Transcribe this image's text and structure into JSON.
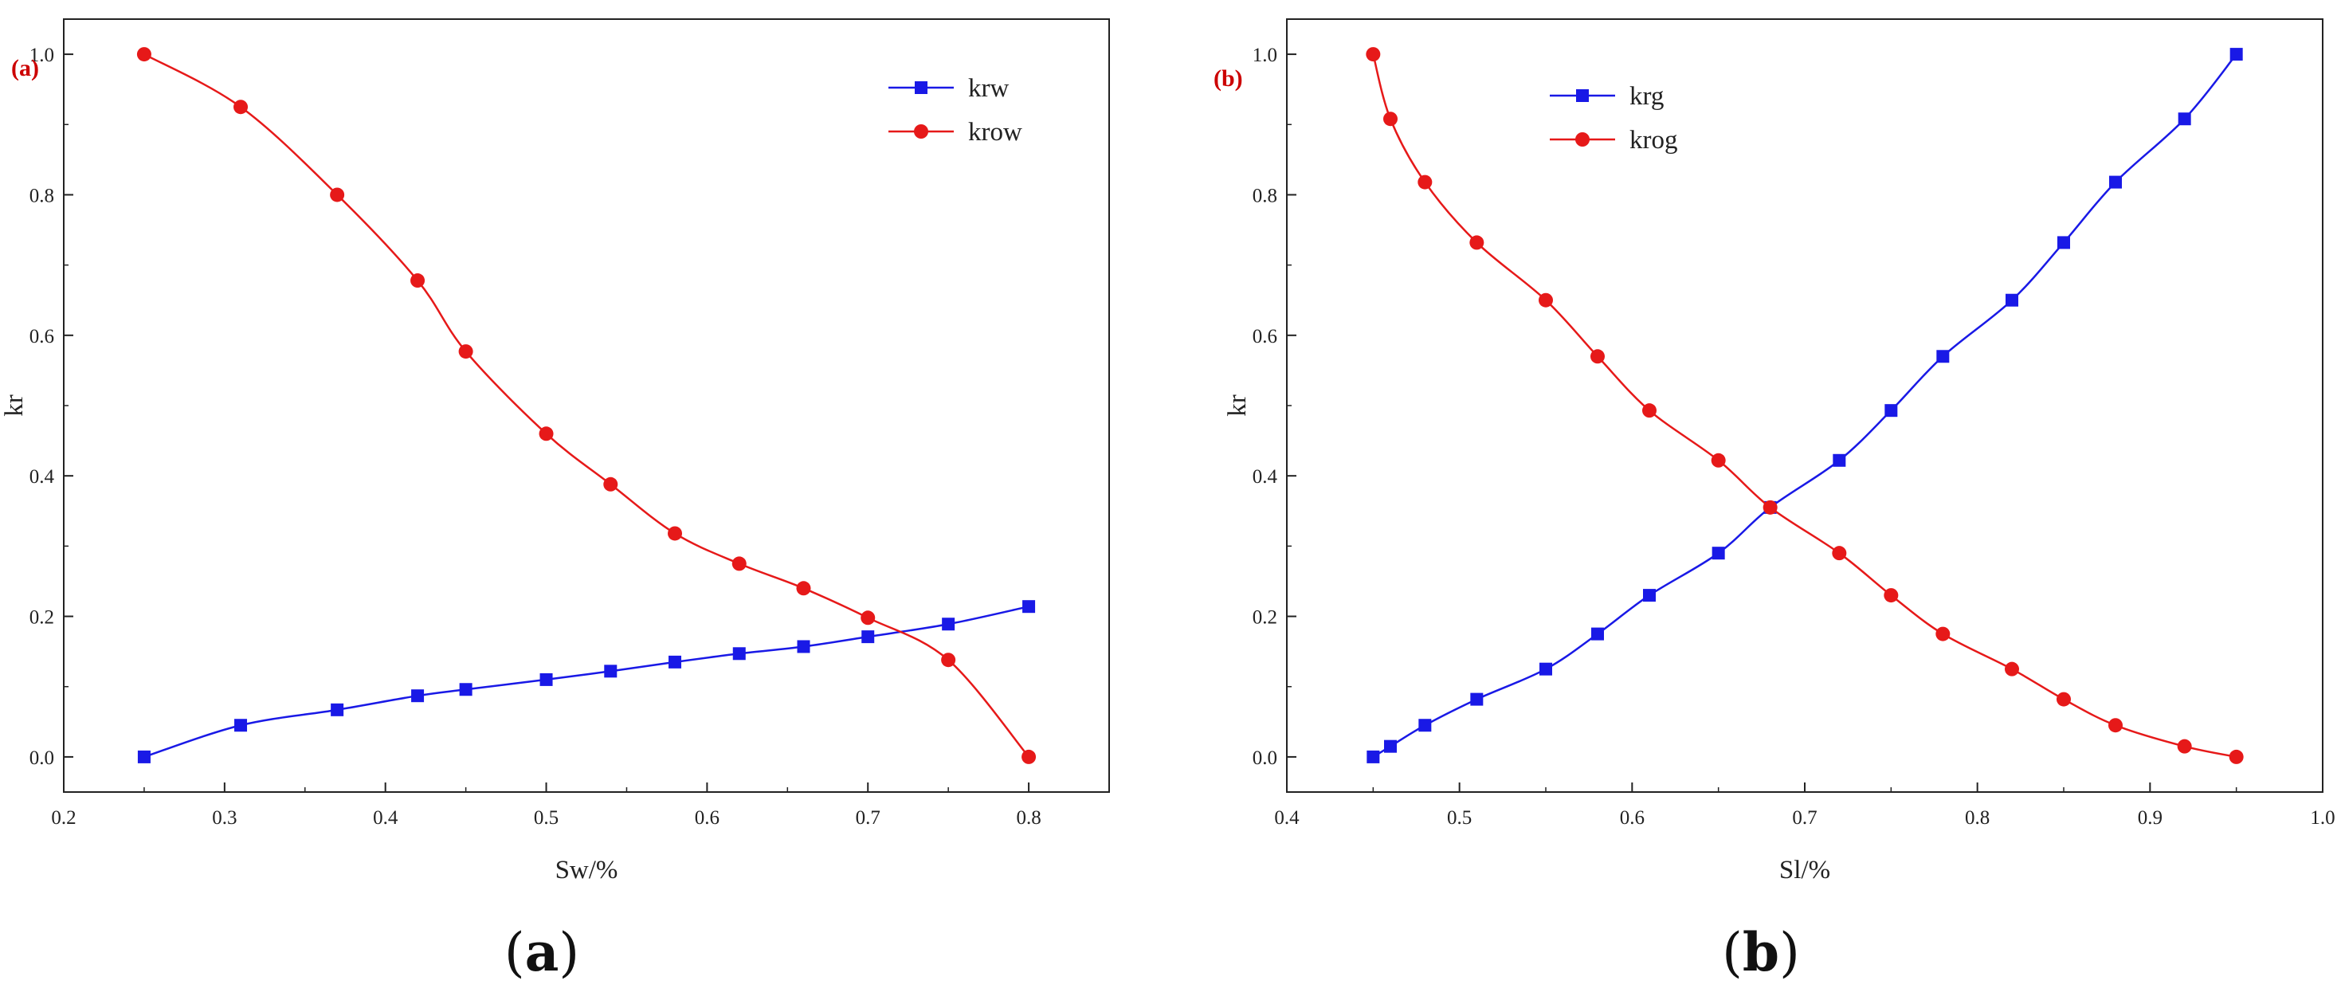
{
  "colors": {
    "blue": "#1919e6",
    "red": "#e61919",
    "tag": "#cc0000",
    "axis": "#222222"
  },
  "chart_data": [
    {
      "id": "a",
      "type": "line",
      "panel_tag": "(a)",
      "caption_letter": "a",
      "xlabel": "Sw/%",
      "ylabel": "kr",
      "xlim": [
        0.2,
        0.85
      ],
      "ylim": [
        -0.05,
        1.05
      ],
      "xticks": [
        0.2,
        0.3,
        0.4,
        0.5,
        0.6,
        0.7,
        0.8
      ],
      "xtick_labels": [
        "0.2",
        "0.3",
        "0.4",
        "0.5",
        "0.6",
        "0.7",
        "0.8"
      ],
      "yticks": [
        0.0,
        0.2,
        0.4,
        0.6,
        0.8,
        1.0
      ],
      "ytick_labels": [
        "0.0",
        "0.2",
        "0.4",
        "0.6",
        "0.8",
        "1.0"
      ],
      "legend_position": "top-right",
      "series": [
        {
          "name": "krw",
          "color_key": "blue",
          "marker": "square",
          "x": [
            0.25,
            0.31,
            0.37,
            0.42,
            0.45,
            0.5,
            0.54,
            0.58,
            0.62,
            0.66,
            0.7,
            0.75,
            0.8
          ],
          "y": [
            0.0,
            0.045,
            0.067,
            0.087,
            0.096,
            0.11,
            0.122,
            0.135,
            0.147,
            0.157,
            0.171,
            0.189,
            0.214
          ]
        },
        {
          "name": "krow",
          "color_key": "red",
          "marker": "circle",
          "x": [
            0.25,
            0.31,
            0.37,
            0.42,
            0.45,
            0.5,
            0.54,
            0.58,
            0.62,
            0.66,
            0.7,
            0.75,
            0.8
          ],
          "y": [
            1.0,
            0.925,
            0.8,
            0.678,
            0.577,
            0.46,
            0.388,
            0.318,
            0.275,
            0.24,
            0.198,
            0.138,
            0.0
          ]
        }
      ]
    },
    {
      "id": "b",
      "type": "line",
      "panel_tag": "(b)",
      "caption_letter": "b",
      "xlabel": "Sl/%",
      "ylabel": "kr",
      "xlim": [
        0.4,
        1.0
      ],
      "ylim": [
        -0.05,
        1.05
      ],
      "xticks": [
        0.4,
        0.5,
        0.6,
        0.7,
        0.8,
        0.9,
        1.0
      ],
      "xtick_labels": [
        "0.4",
        "0.5",
        "0.6",
        "0.7",
        "0.8",
        "0.9",
        "1.0"
      ],
      "yticks": [
        0.0,
        0.2,
        0.4,
        0.6,
        0.8,
        1.0
      ],
      "ytick_labels": [
        "0.0",
        "0.2",
        "0.4",
        "0.6",
        "0.8",
        "1.0"
      ],
      "legend_position": "top-left",
      "series": [
        {
          "name": "krg",
          "color_key": "blue",
          "marker": "square",
          "x": [
            0.45,
            0.46,
            0.48,
            0.51,
            0.55,
            0.58,
            0.61,
            0.65,
            0.68,
            0.72,
            0.75,
            0.78,
            0.82,
            0.85,
            0.88,
            0.92,
            0.95
          ],
          "y": [
            0.0,
            0.015,
            0.045,
            0.082,
            0.125,
            0.175,
            0.23,
            0.29,
            0.355,
            0.422,
            0.493,
            0.57,
            0.65,
            0.732,
            0.818,
            0.908,
            1.0
          ]
        },
        {
          "name": "krog",
          "color_key": "red",
          "marker": "circle",
          "x": [
            0.45,
            0.46,
            0.48,
            0.51,
            0.55,
            0.58,
            0.61,
            0.65,
            0.68,
            0.72,
            0.75,
            0.78,
            0.82,
            0.85,
            0.88,
            0.92,
            0.95
          ],
          "y": [
            1.0,
            0.908,
            0.818,
            0.732,
            0.65,
            0.57,
            0.493,
            0.422,
            0.355,
            0.29,
            0.23,
            0.175,
            0.125,
            0.082,
            0.045,
            0.015,
            0.0
          ]
        }
      ]
    }
  ]
}
